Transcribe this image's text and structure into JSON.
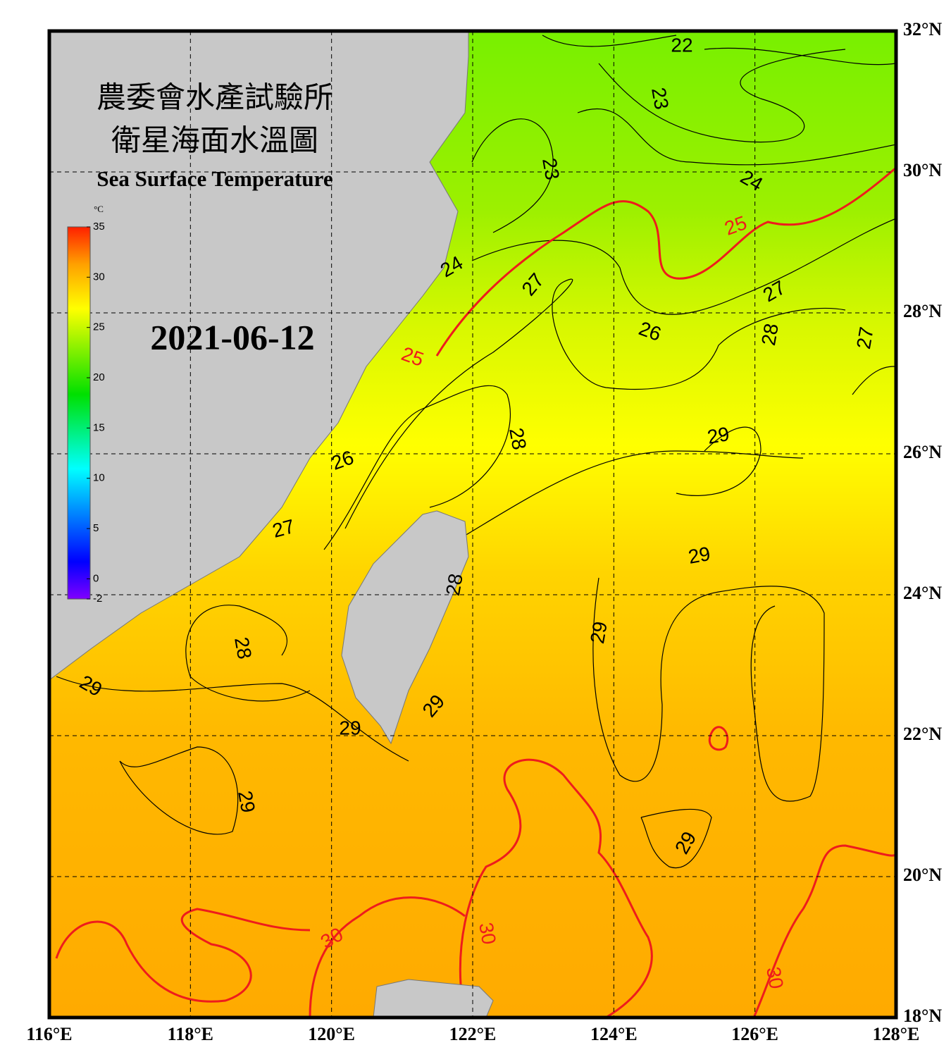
{
  "header": {
    "title_zh": "農委會水產試驗所",
    "subtitle_zh": "衛星海面水溫圖",
    "title_en": "Sea Surface Temperature",
    "date": "2021-06-12"
  },
  "colorbar": {
    "unit": "°C",
    "range": [
      -2,
      35
    ],
    "ticks": [
      35,
      30,
      25,
      20,
      15,
      10,
      5,
      0,
      -2
    ]
  },
  "map": {
    "lonlim": [
      116,
      128
    ],
    "latlim": [
      18,
      32
    ],
    "lonticks": [
      {
        "value": 116,
        "label": "116°E"
      },
      {
        "value": 118,
        "label": "118°E"
      },
      {
        "value": 120,
        "label": "120°E"
      },
      {
        "value": 122,
        "label": "122°E"
      },
      {
        "value": 124,
        "label": "124°E"
      },
      {
        "value": 126,
        "label": "126°E"
      },
      {
        "value": 128,
        "label": "128°E"
      }
    ],
    "latticks": [
      {
        "value": 32,
        "label": "32°N"
      },
      {
        "value": 30,
        "label": "30°N"
      },
      {
        "value": 28,
        "label": "28°N"
      },
      {
        "value": 26,
        "label": "26°N"
      },
      {
        "value": 24,
        "label": "24°N"
      },
      {
        "value": 22,
        "label": "22°N"
      },
      {
        "value": 20,
        "label": "20°N"
      },
      {
        "value": 18,
        "label": "18°N"
      }
    ]
  },
  "contour_labels": [
    "22",
    "23",
    "23",
    "24",
    "25",
    "24",
    "27",
    "27",
    "25",
    "26",
    "28",
    "27",
    "28",
    "29",
    "26",
    "27",
    "29",
    "28",
    "28",
    "29",
    "29",
    "29",
    "29",
    "29",
    "29",
    "30",
    "30",
    "30"
  ]
}
